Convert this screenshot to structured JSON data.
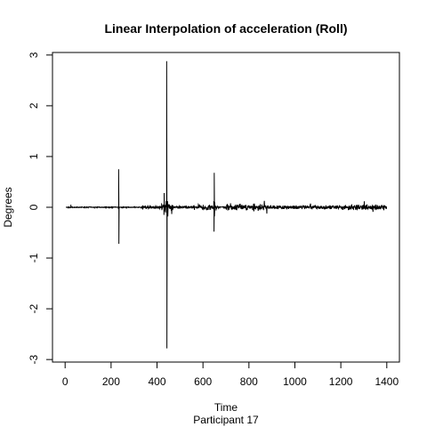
{
  "chart_data": {
    "type": "line",
    "title": "Linear Interpolation of acceleration (Roll)",
    "xlabel": "Time",
    "subtitle": "Participant  17",
    "ylabel": "Degrees",
    "xlim": [
      -55,
      1455
    ],
    "ylim": [
      -3.05,
      3.05
    ],
    "x_ticks": [
      0,
      200,
      400,
      600,
      800,
      1000,
      1200,
      1400
    ],
    "y_ticks": [
      -3,
      -2,
      -1,
      0,
      1,
      2,
      3
    ],
    "grid": false,
    "legend": "none",
    "line_color": "#000000",
    "series": [
      {
        "x": [
          5,
          25,
          120,
          232,
          233,
          234,
          350,
          420,
          430,
          431,
          432,
          441,
          442,
          443,
          446,
          447,
          448,
          646,
          647,
          648,
          649,
          650,
          651,
          652
        ],
        "y": [
          0.0,
          0.05,
          0.0,
          0.0,
          0.75,
          -0.72,
          0.03,
          0.08,
          -0.15,
          0.28,
          -0.08,
          0.0,
          2.88,
          -2.78,
          0.12,
          -0.18,
          0.05,
          0.0,
          0.12,
          -0.48,
          0.68,
          -0.18,
          0.1,
          0.0
        ]
      }
    ],
    "noise_segments": [
      {
        "x_start": 5,
        "x_end": 330,
        "amplitude": 0.01
      },
      {
        "x_start": 330,
        "x_end": 420,
        "amplitude": 0.035
      },
      {
        "x_start": 420,
        "x_end": 470,
        "amplitude": 0.08
      },
      {
        "x_start": 470,
        "x_end": 580,
        "amplitude": 0.025
      },
      {
        "x_start": 580,
        "x_end": 660,
        "amplitude": 0.07
      },
      {
        "x_start": 660,
        "x_end": 700,
        "amplitude": 0.02
      },
      {
        "x_start": 700,
        "x_end": 880,
        "amplitude": 0.08
      },
      {
        "x_start": 880,
        "x_end": 1200,
        "amplitude": 0.045
      },
      {
        "x_start": 1200,
        "x_end": 1400,
        "amplitude": 0.06
      }
    ]
  }
}
